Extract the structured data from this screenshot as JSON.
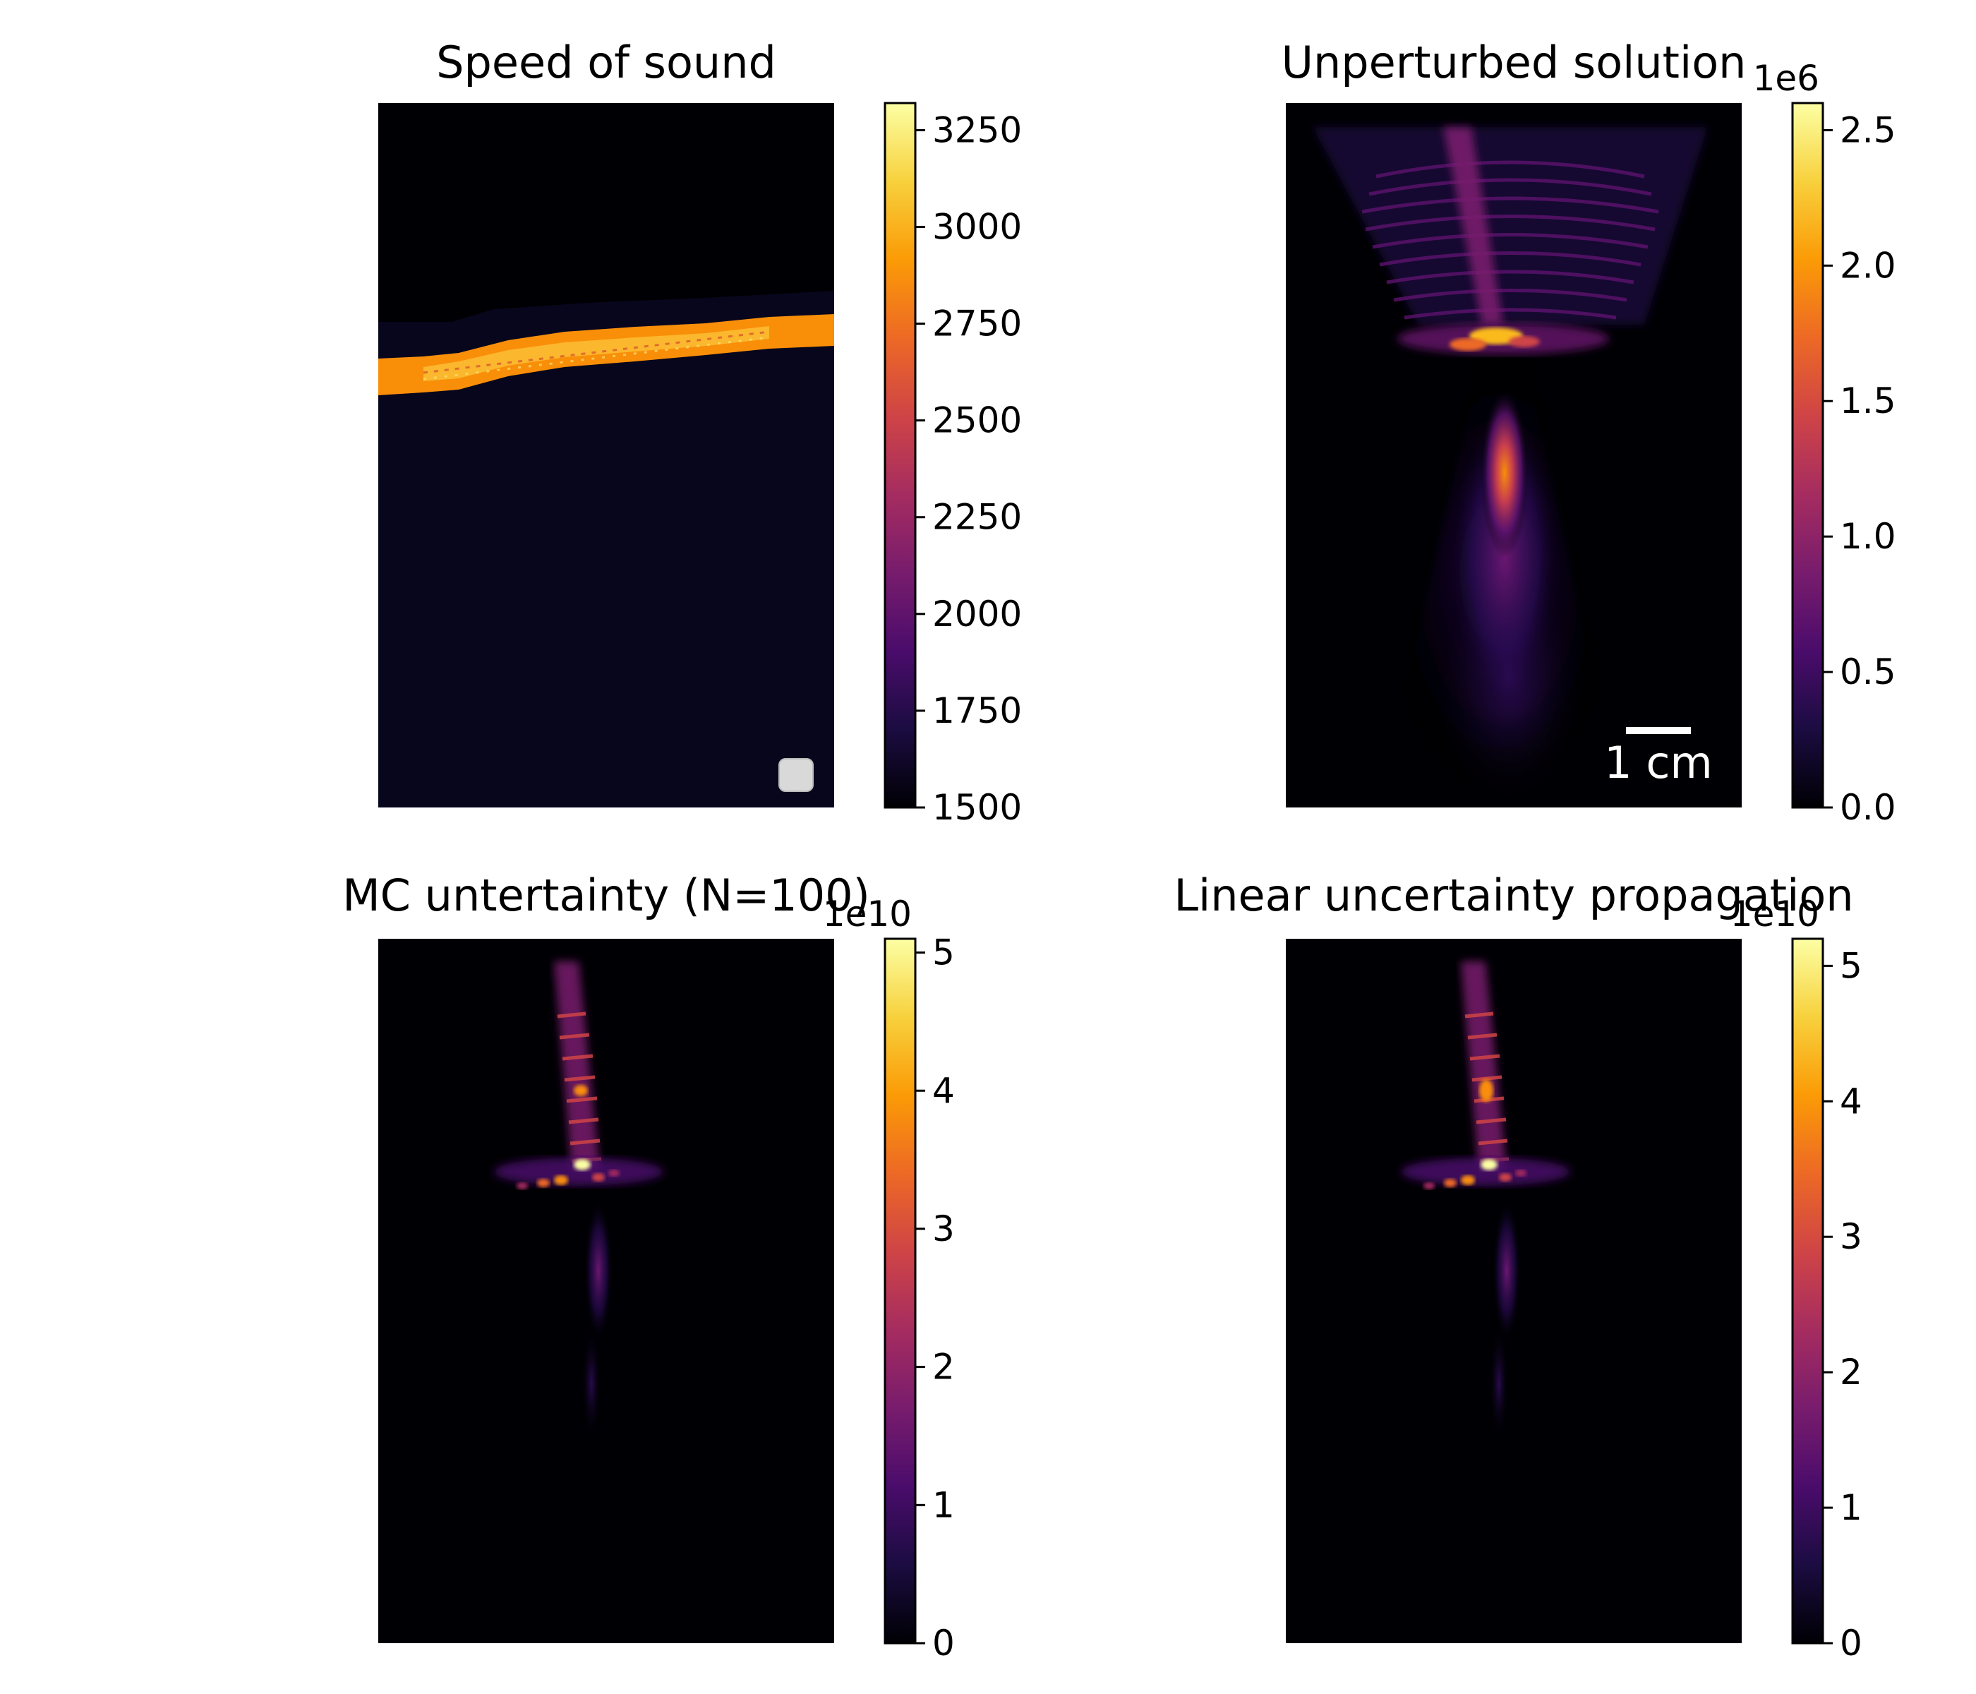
{
  "colors": {
    "colormap": "inferno",
    "inferno_stops": [
      "#000004",
      "#1b0c41",
      "#4a0c6b",
      "#781c6d",
      "#a52c60",
      "#cf4446",
      "#ed6925",
      "#fb9b06",
      "#f7d13d",
      "#fcffa4"
    ],
    "background": "#ffffff",
    "scalebar": "#ffffff"
  },
  "chart_data": [
    {
      "type": "heatmap",
      "title": "Speed of sound",
      "colorbar": {
        "min": 1500,
        "max": 3320,
        "offset_label": "",
        "ticks": [
          1500,
          1750,
          2000,
          2250,
          2500,
          2750,
          3000,
          3250
        ],
        "tick_labels": [
          "1500",
          "1750",
          "2000",
          "2250",
          "2500",
          "2750",
          "3000",
          "3250"
        ]
      },
      "field": {
        "background_value": 1500,
        "upper_region_value": 1500,
        "lower_region_value": 1540,
        "skull_band_value": 3000,
        "source_marker_icon": "rounded-square-icon"
      }
    },
    {
      "type": "heatmap",
      "title": "Unperturbed solution",
      "colorbar": {
        "min": 0,
        "max": 2.6,
        "offset_label": "1e6",
        "ticks": [
          0,
          0.5,
          1.0,
          1.5,
          2.0,
          2.5
        ],
        "tick_labels": [
          "0.0",
          "0.5",
          "1.0",
          "1.5",
          "2.0",
          "2.5"
        ]
      },
      "scale_bar": {
        "label": "1 cm",
        "length": 1,
        "unit": "cm"
      },
      "field": {
        "focus_peak_value": 1.9,
        "skull_hotspot_value": 2.5
      }
    },
    {
      "type": "heatmap",
      "title": "MC untertainty (N=100)",
      "colorbar": {
        "min": 0,
        "max": 5.1,
        "offset_label": "1e10",
        "ticks": [
          0,
          1,
          2,
          3,
          4,
          5
        ],
        "tick_labels": [
          "0",
          "1",
          "2",
          "3",
          "4",
          "5"
        ]
      },
      "field": {
        "beam_peak_value": 4.0
      }
    },
    {
      "type": "heatmap",
      "title": "Linear uncertainty propagation",
      "colorbar": {
        "min": 0,
        "max": 5.2,
        "offset_label": "1e10",
        "ticks": [
          0,
          1,
          2,
          3,
          4,
          5
        ],
        "tick_labels": [
          "0",
          "1",
          "2",
          "3",
          "4",
          "5"
        ]
      },
      "field": {
        "beam_peak_value": 4.2
      }
    }
  ]
}
